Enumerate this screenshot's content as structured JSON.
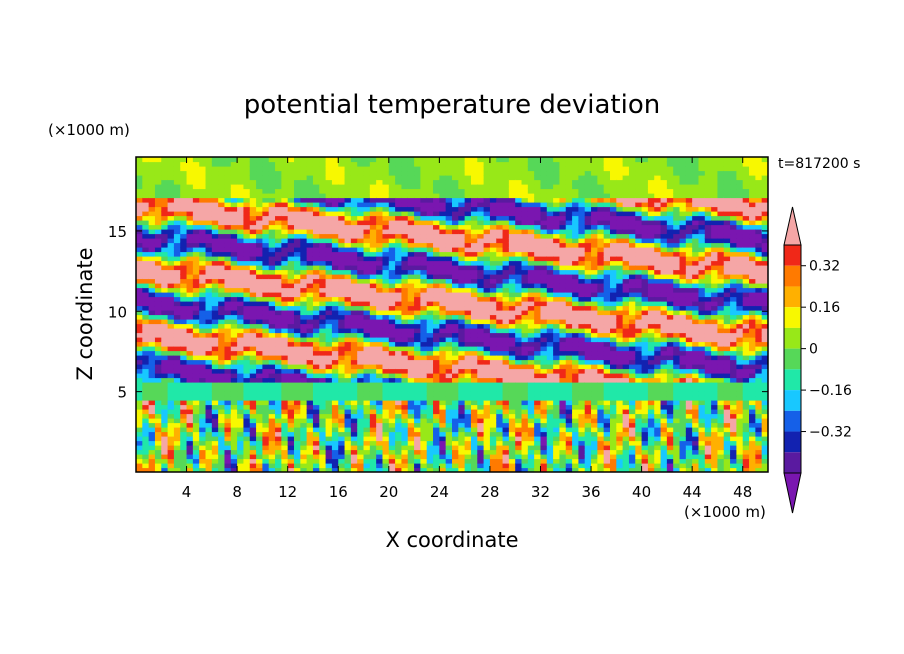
{
  "chart_data": {
    "type": "heatmap",
    "title": "potential temperature deviation",
    "time_label": "t=817200 s",
    "xlabel": "X coordinate",
    "ylabel": "Z coordinate",
    "x_unit": "(×1000 m)",
    "y_unit": "(×1000 m)",
    "xlim": [
      0,
      50
    ],
    "ylim": [
      0,
      19.6
    ],
    "x_ticks": [
      4,
      8,
      12,
      16,
      20,
      24,
      28,
      32,
      36,
      40,
      44,
      48
    ],
    "y_ticks": [
      5,
      10,
      15
    ],
    "colorbar": {
      "levels": [
        -0.48,
        -0.4,
        -0.32,
        -0.24,
        -0.16,
        -0.08,
        0,
        0.08,
        0.16,
        0.24,
        0.32,
        0.4,
        0.48
      ],
      "tick_labels": [
        "0.32",
        "0.16",
        "0",
        "−0.16",
        "−0.32"
      ],
      "tick_values": [
        0.32,
        0.16,
        0,
        -0.16,
        -0.32
      ],
      "colors": [
        "#7a16b0",
        "#5a1aa0",
        "#1222b0",
        "#1560e8",
        "#18c8ff",
        "#20e8a8",
        "#56d858",
        "#98e818",
        "#f8f800",
        "#ffb000",
        "#ff7a00",
        "#f02818",
        "#f5a6a6"
      ],
      "extend": "both"
    },
    "bands": [
      {
        "z_range": [
          17,
          19.6
        ],
        "description_value": 0.04
      },
      {
        "z_range": [
          5.4,
          17
        ],
        "description_value": "alternating bands"
      },
      {
        "z_range": [
          4.5,
          5.4
        ],
        "description_value": -0.1
      },
      {
        "z_range": [
          0,
          4.5
        ],
        "description_value": "mixed"
      }
    ]
  }
}
